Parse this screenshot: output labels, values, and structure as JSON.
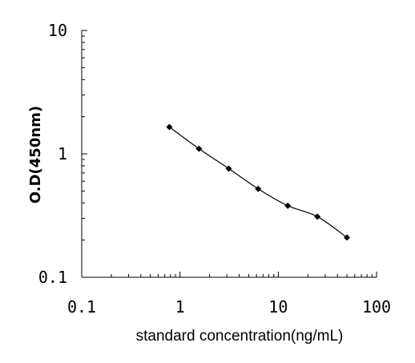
{
  "chart_data": {
    "type": "line",
    "xlabel": "standard concentration(ng/mL)",
    "ylabel": "O.D(450nm)",
    "xscale": "log",
    "yscale": "log",
    "xlim": [
      0.1,
      100
    ],
    "ylim": [
      0.1,
      10
    ],
    "grid": false,
    "x_tick_labels": [
      "0.1",
      "1",
      "10",
      "100"
    ],
    "y_tick_labels": [
      "0.1",
      "1",
      "10"
    ],
    "series": [
      {
        "x": [
          0.78,
          1.56,
          3.13,
          6.25,
          12.5,
          25,
          50
        ],
        "y": [
          1.65,
          1.1,
          0.76,
          0.52,
          0.38,
          0.31,
          0.21
        ],
        "marker": "diamond",
        "color": "#000000"
      }
    ]
  }
}
